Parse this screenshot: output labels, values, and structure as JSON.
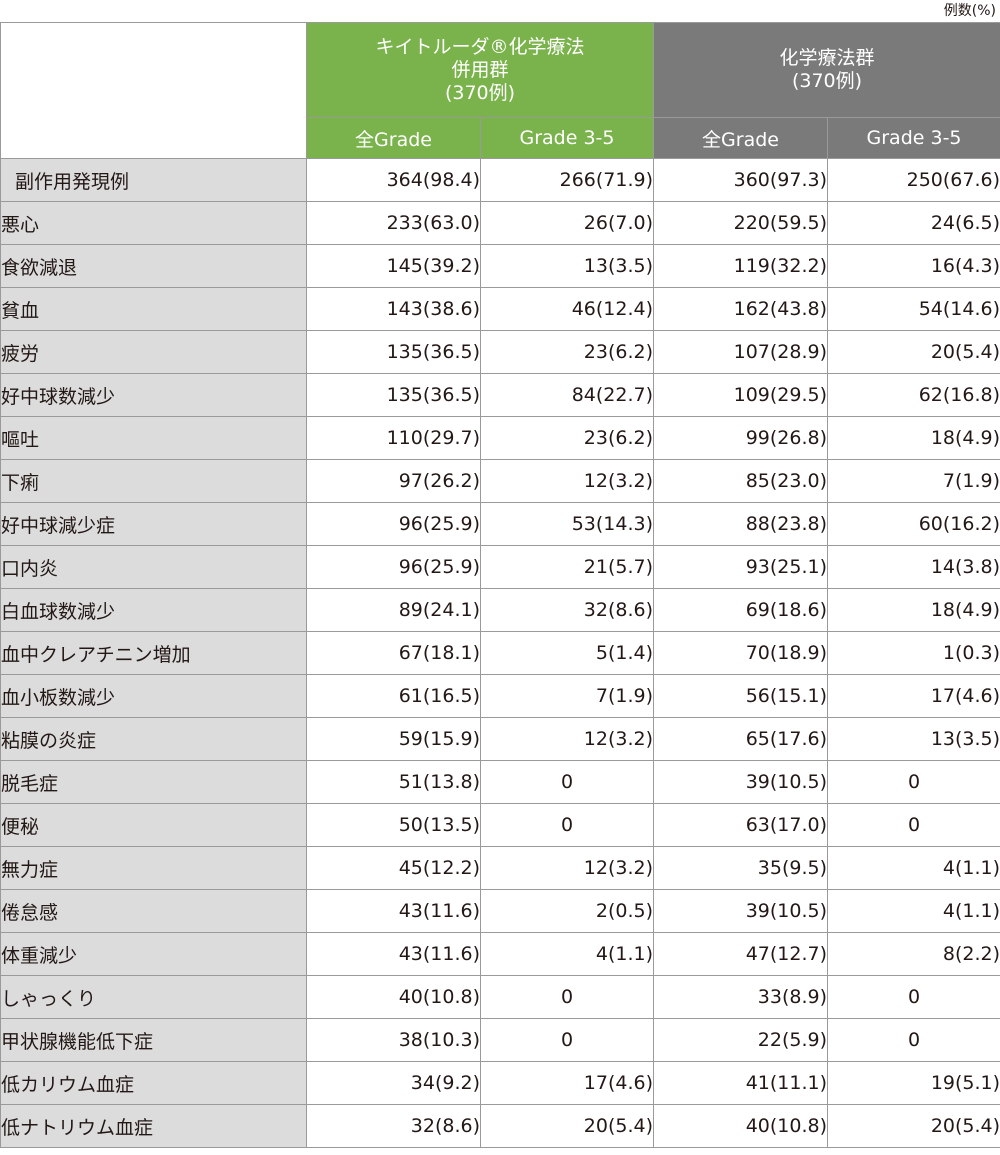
{
  "unit_note": "例数(%)",
  "header": {
    "group1": {
      "line1": "キイトルーダ®化学療法",
      "line2": "併用群",
      "line3": "(370例)"
    },
    "group2": {
      "line1": "化学療法群",
      "line2": "(370例)"
    },
    "sub": [
      "全Grade",
      "Grade 3-5",
      "全Grade",
      "Grade 3-5"
    ]
  },
  "rows": [
    {
      "label": "副作用発現例",
      "cells": [
        "364(98.4)",
        "266(71.9)",
        "360(97.3)",
        "250(67.6)"
      ]
    },
    {
      "label": "悪心",
      "cells": [
        "233(63.0)",
        "26(7.0)",
        "220(59.5)",
        "24(6.5)"
      ]
    },
    {
      "label": "食欲減退",
      "cells": [
        "145(39.2)",
        "13(3.5)",
        "119(32.2)",
        "16(4.3)"
      ]
    },
    {
      "label": "貧血",
      "cells": [
        "143(38.6)",
        "46(12.4)",
        "162(43.8)",
        "54(14.6)"
      ]
    },
    {
      "label": "疲労",
      "cells": [
        "135(36.5)",
        "23(6.2)",
        "107(28.9)",
        "20(5.4)"
      ]
    },
    {
      "label": "好中球数減少",
      "cells": [
        "135(36.5)",
        "84(22.7)",
        "109(29.5)",
        "62(16.8)"
      ]
    },
    {
      "label": "嘔吐",
      "cells": [
        "110(29.7)",
        "23(6.2)",
        "99(26.8)",
        "18(4.9)"
      ]
    },
    {
      "label": "下痢",
      "cells": [
        "97(26.2)",
        "12(3.2)",
        "85(23.0)",
        "7(1.9)"
      ]
    },
    {
      "label": "好中球減少症",
      "cells": [
        "96(25.9)",
        "53(14.3)",
        "88(23.8)",
        "60(16.2)"
      ]
    },
    {
      "label": "口内炎",
      "cells": [
        "96(25.9)",
        "21(5.7)",
        "93(25.1)",
        "14(3.8)"
      ]
    },
    {
      "label": "白血球数減少",
      "cells": [
        "89(24.1)",
        "32(8.6)",
        "69(18.6)",
        "18(4.9)"
      ]
    },
    {
      "label": "血中クレアチニン増加",
      "cells": [
        "67(18.1)",
        "5(1.4)",
        "70(18.9)",
        "1(0.3)"
      ]
    },
    {
      "label": "血小板数減少",
      "cells": [
        "61(16.5)",
        "7(1.9)",
        "56(15.1)",
        "17(4.6)"
      ]
    },
    {
      "label": "粘膜の炎症",
      "cells": [
        "59(15.9)",
        "12(3.2)",
        "65(17.6)",
        "13(3.5)"
      ]
    },
    {
      "label": "脱毛症",
      "cells": [
        "51(13.8)",
        "0",
        "39(10.5)",
        "0"
      ]
    },
    {
      "label": "便秘",
      "cells": [
        "50(13.5)",
        "0",
        "63(17.0)",
        "0"
      ]
    },
    {
      "label": "無力症",
      "cells": [
        "45(12.2)",
        "12(3.2)",
        "35(9.5)",
        "4(1.1)"
      ]
    },
    {
      "label": "倦怠感",
      "cells": [
        "43(11.6)",
        "2(0.5)",
        "39(10.5)",
        "4(1.1)"
      ]
    },
    {
      "label": "体重減少",
      "cells": [
        "43(11.6)",
        "4(1.1)",
        "47(12.7)",
        "8(2.2)"
      ]
    },
    {
      "label": "しゃっくり",
      "cells": [
        "40(10.8)",
        "0",
        "33(8.9)",
        "0"
      ]
    },
    {
      "label": "甲状腺機能低下症",
      "cells": [
        "38(10.3)",
        "0",
        "22(5.9)",
        "0"
      ]
    },
    {
      "label": "低カリウム血症",
      "cells": [
        "34(9.2)",
        "17(4.6)",
        "41(11.1)",
        "19(5.1)"
      ]
    },
    {
      "label": "低ナトリウム血症",
      "cells": [
        "32(8.6)",
        "20(5.4)",
        "40(10.8)",
        "20(5.4)"
      ]
    }
  ]
}
